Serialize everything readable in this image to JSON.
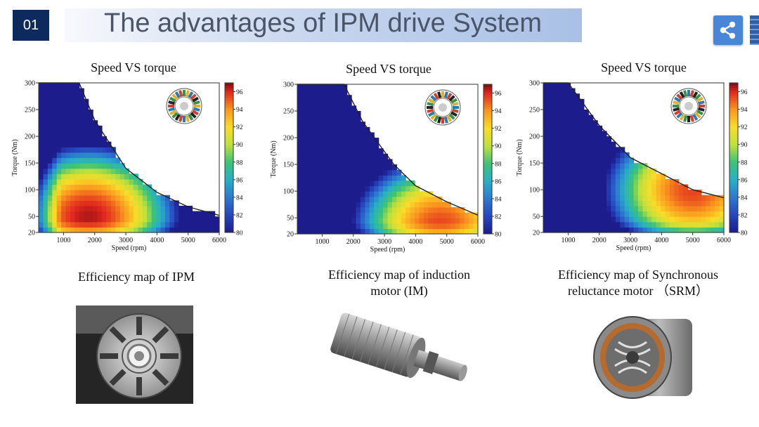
{
  "slide": {
    "number": "01",
    "title": "The advantages of IPM drive System"
  },
  "colors": {
    "accent": "#0d2a5e",
    "share": "#4a86d8"
  },
  "icons": {
    "share": "share-icon"
  },
  "captions": [
    {
      "lines": [
        "Efficiency map of IPM"
      ]
    },
    {
      "lines": [
        "Efficiency map of induction",
        "motor (IM)"
      ]
    },
    {
      "lines": [
        "Efficiency map of Synchronous",
        "reluctance motor （SRM）"
      ]
    }
  ],
  "photos": [
    {
      "name": "ipm-rotor-photo",
      "subject": "ipm-rotor"
    },
    {
      "name": "im-rotor-photo",
      "subject": "induction-rotor"
    },
    {
      "name": "srm-rotor-photo",
      "subject": "synchronous-reluctance-rotor"
    }
  ],
  "chart_data": [
    {
      "type": "heatmap",
      "title": "Speed VS torque",
      "xlabel": "Speed (rpm)",
      "ylabel": "Torque (Nm)",
      "xlim": [
        200,
        6000
      ],
      "ylim": [
        20,
        300
      ],
      "xticks": [
        1000,
        2000,
        3000,
        4000,
        5000,
        6000
      ],
      "yticks": [
        20,
        50,
        100,
        150,
        200,
        250,
        300
      ],
      "colorbar": {
        "range": [
          80,
          97
        ],
        "ticks": [
          80,
          82,
          84,
          86,
          88,
          90,
          92,
          94,
          96
        ]
      },
      "torque_limit": [
        [
          200,
          300
        ],
        [
          1500,
          300
        ],
        [
          2000,
          230
        ],
        [
          3000,
          140
        ],
        [
          4000,
          95
        ],
        [
          5000,
          68
        ],
        [
          6000,
          52
        ]
      ],
      "efficiency_peak": {
        "speed": 1800,
        "torque": 50,
        "value": 96.5
      },
      "inset": "ipm-lamination"
    },
    {
      "type": "heatmap",
      "title": "Speed VS torque",
      "xlabel": "Speed (rpm)",
      "ylabel": "Torque (Nm)",
      "xlim": [
        200,
        6000
      ],
      "ylim": [
        20,
        300
      ],
      "xticks": [
        1000,
        2000,
        3000,
        4000,
        5000,
        6000
      ],
      "yticks": [
        20,
        50,
        100,
        150,
        200,
        250,
        300
      ],
      "colorbar": {
        "range": [
          80,
          97
        ],
        "ticks": [
          80,
          82,
          84,
          86,
          88,
          90,
          92,
          94,
          96
        ]
      },
      "torque_limit": [
        [
          200,
          300
        ],
        [
          1700,
          300
        ],
        [
          2300,
          230
        ],
        [
          3300,
          150
        ],
        [
          4000,
          110
        ],
        [
          5000,
          80
        ],
        [
          6000,
          55
        ]
      ],
      "efficiency_peak": {
        "speed": 4800,
        "torque": 35,
        "value": 95.5
      },
      "inset": "im-lamination"
    },
    {
      "type": "heatmap",
      "title": "Speed VS torque",
      "xlabel": "Speed (rpm)",
      "ylabel": "Torque (Nm)",
      "xlim": [
        200,
        6000
      ],
      "ylim": [
        20,
        300
      ],
      "xticks": [
        1000,
        2000,
        3000,
        4000,
        5000,
        6000
      ],
      "yticks": [
        20,
        50,
        100,
        150,
        200,
        250,
        300
      ],
      "colorbar": {
        "range": [
          80,
          97
        ],
        "ticks": [
          80,
          82,
          84,
          86,
          88,
          90,
          92,
          94,
          96
        ]
      },
      "torque_limit": [
        [
          200,
          300
        ],
        [
          1000,
          300
        ],
        [
          2000,
          220
        ],
        [
          3000,
          160
        ],
        [
          4000,
          130
        ],
        [
          5000,
          100
        ],
        [
          6000,
          85
        ]
      ],
      "efficiency_peak": {
        "speed": 5000,
        "torque": 100,
        "value": 95.5
      },
      "inset": "srm-lamination"
    }
  ]
}
